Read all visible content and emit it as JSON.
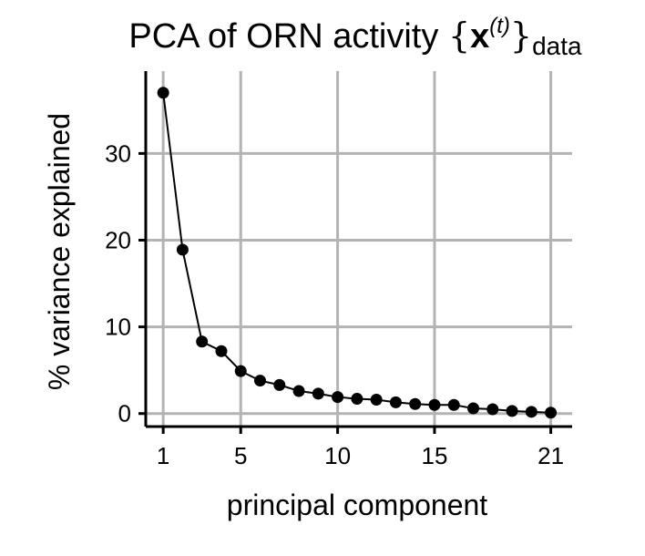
{
  "chart_data": {
    "type": "line",
    "title": {
      "main": "PCA of ORN activity ",
      "open_brace": "{",
      "bold": "x",
      "superscript": "(t)",
      "close_brace": "}",
      "subscript": "data"
    },
    "xlabel": "principal component",
    "ylabel": "% variance explained",
    "xlim": [
      0.1,
      22.1
    ],
    "ylim": [
      -1.5,
      39.5
    ],
    "x_ticks": [
      1,
      5,
      10,
      15,
      21
    ],
    "y_ticks": [
      0,
      10,
      20,
      30
    ],
    "grid": true,
    "legend": "none",
    "colors": {
      "line": "#000000",
      "point": "#000000",
      "grid": "#b3b3b3",
      "axis": "#000000"
    },
    "series": [
      {
        "x": [
          1,
          2,
          3,
          4,
          5,
          6,
          7,
          8,
          9,
          10,
          11,
          12,
          13,
          14,
          15,
          16,
          17,
          18,
          19,
          20,
          21
        ],
        "y": [
          37.0,
          18.9,
          8.3,
          7.2,
          4.9,
          3.8,
          3.3,
          2.6,
          2.3,
          1.9,
          1.7,
          1.6,
          1.3,
          1.1,
          1.0,
          1.0,
          0.6,
          0.5,
          0.3,
          0.2,
          0.1
        ]
      }
    ]
  }
}
